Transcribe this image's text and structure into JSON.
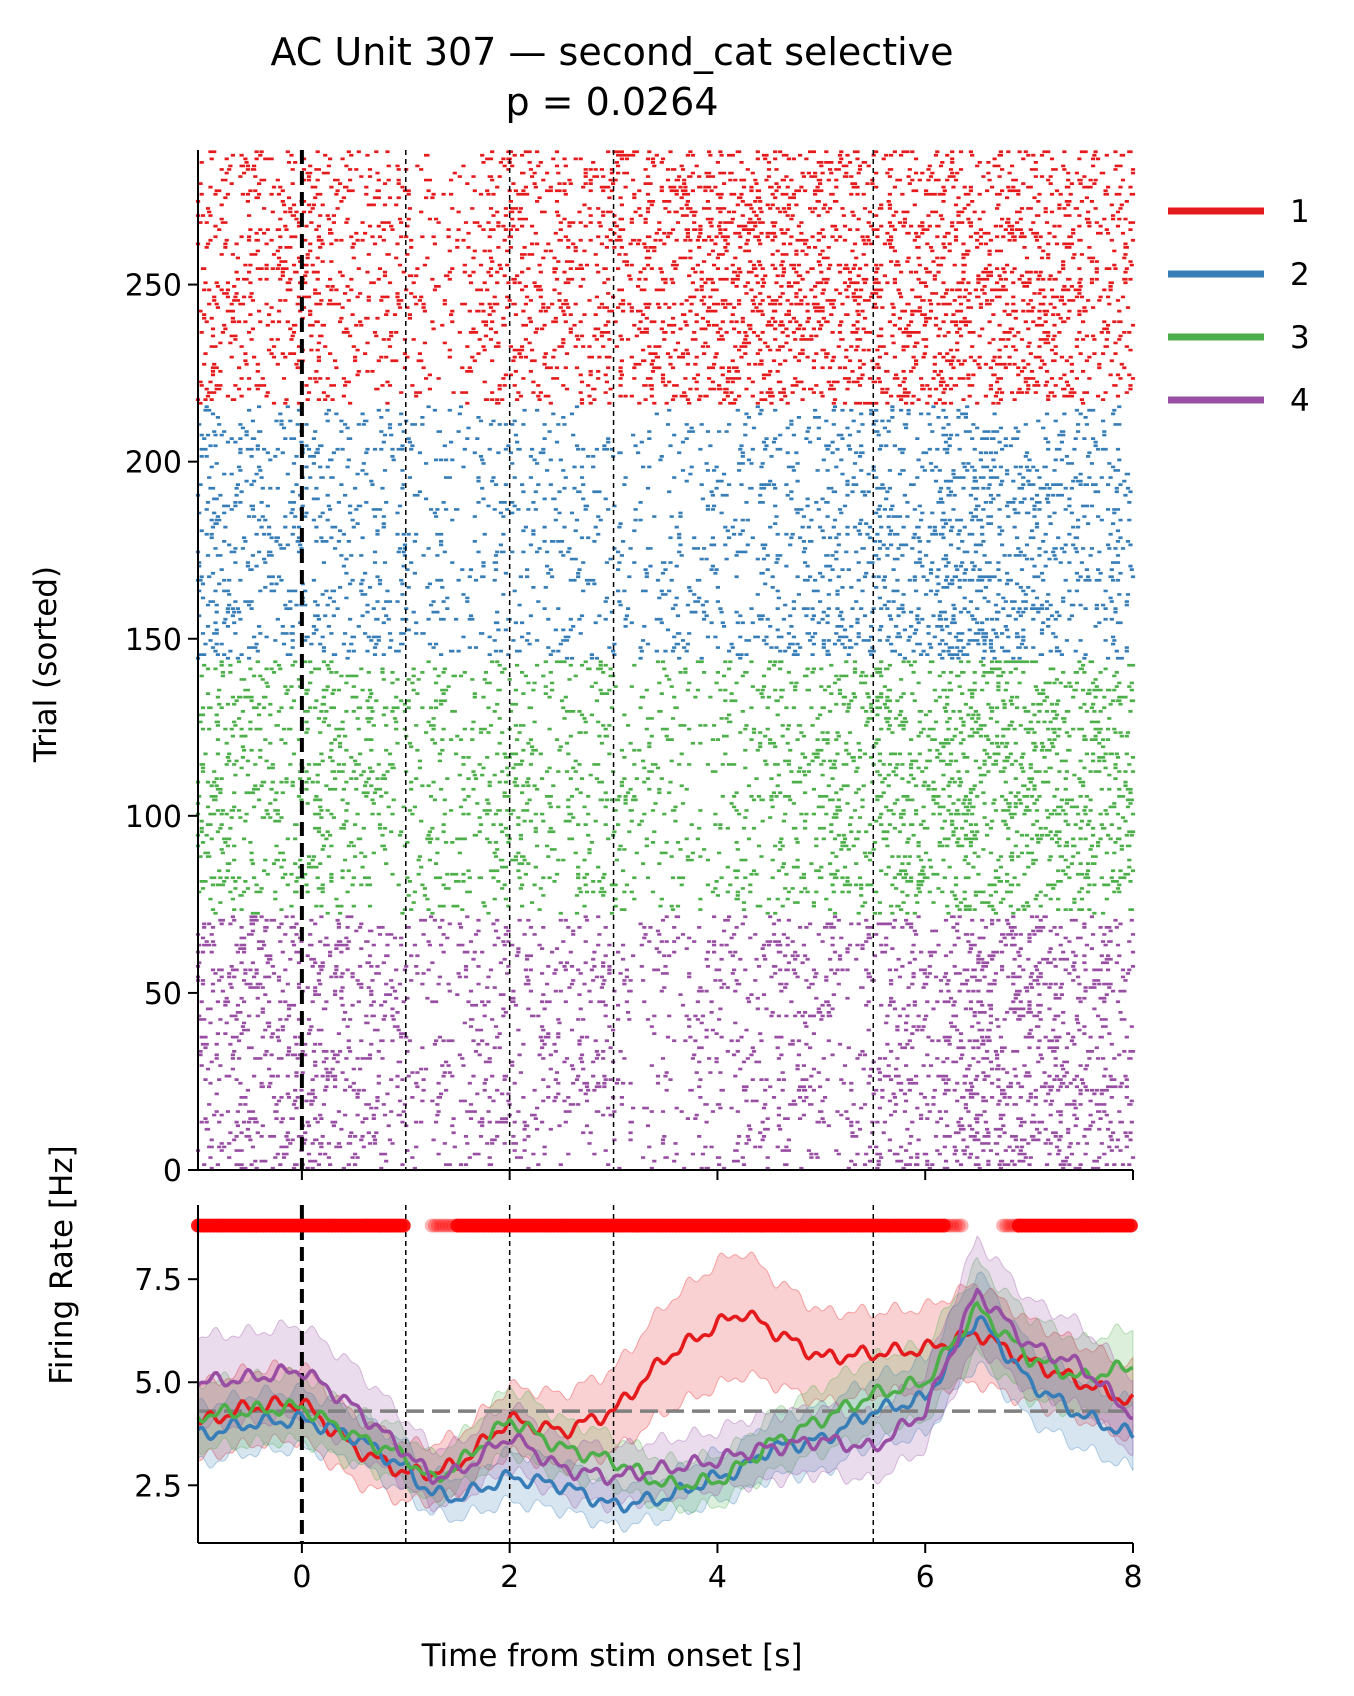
{
  "chart_data": [
    {
      "type": "raster",
      "title": "AC Unit 307 — second_cat selective",
      "subtitle": "p = 0.0264",
      "xlabel": "",
      "ylabel": "Trial (sorted)",
      "xlim": [
        -1,
        8
      ],
      "ylim": [
        0,
        288
      ],
      "yticks": [
        0,
        50,
        100,
        150,
        200,
        250
      ],
      "event_lines": [
        0,
        1,
        2,
        3,
        5.5
      ],
      "stim_onset": 0,
      "groups": [
        {
          "name": "1",
          "color": "#e41a1c",
          "trial_start": 216,
          "trial_end": 288,
          "base_rate_hz": 4.2
        },
        {
          "name": "2",
          "color": "#377eb8",
          "trial_start": 144,
          "trial_end": 216,
          "base_rate_hz": 3.6
        },
        {
          "name": "3",
          "color": "#4daf4a",
          "trial_start": 72,
          "trial_end": 144,
          "base_rate_hz": 3.9
        },
        {
          "name": "4",
          "color": "#984ea3",
          "trial_start": 0,
          "trial_end": 72,
          "base_rate_hz": 3.8
        }
      ]
    },
    {
      "type": "line",
      "xlabel": "Time from stim onset [s]",
      "ylabel": "Firing Rate [Hz]",
      "xlim": [
        -1,
        8
      ],
      "ylim": [
        1.1,
        9.3
      ],
      "xticks": [
        0,
        2,
        4,
        6,
        8
      ],
      "yticks": [
        2.5,
        5.0,
        7.5
      ],
      "baseline": 4.3,
      "significance_level": 8.8,
      "significance_color": "#ff0000",
      "significant_intervals": [
        [
          -1.0,
          1.0
        ],
        [
          1.5,
          6.2
        ],
        [
          6.9,
          8.0
        ]
      ],
      "marginal_intervals": [
        [
          0.6,
          0.95
        ],
        [
          1.25,
          1.5
        ],
        [
          6.2,
          6.35
        ],
        [
          6.75,
          6.95
        ]
      ],
      "x": [
        -1.0,
        -0.5,
        0.0,
        0.5,
        1.0,
        1.25,
        1.5,
        2.0,
        2.5,
        3.0,
        3.5,
        4.0,
        4.25,
        4.5,
        5.0,
        5.5,
        6.0,
        6.5,
        7.0,
        7.5,
        8.0
      ],
      "series": [
        {
          "name": "1",
          "color": "#e41a1c",
          "values": [
            4.0,
            4.4,
            4.5,
            3.4,
            2.8,
            2.8,
            3.0,
            4.1,
            3.8,
            4.3,
            5.6,
            6.4,
            6.7,
            6.3,
            5.6,
            5.7,
            5.8,
            6.2,
            5.5,
            5.0,
            4.5
          ],
          "ci_halfwidth": [
            0.9,
            0.9,
            0.9,
            0.8,
            0.7,
            0.7,
            0.7,
            0.8,
            0.9,
            1.0,
            1.3,
            1.5,
            1.5,
            1.3,
            1.1,
            1.0,
            1.0,
            1.2,
            1.0,
            0.9,
            0.9
          ]
        },
        {
          "name": "2",
          "color": "#377eb8",
          "values": [
            3.7,
            4.0,
            4.1,
            3.7,
            2.9,
            2.3,
            2.2,
            2.7,
            2.5,
            2.0,
            2.2,
            2.7,
            2.9,
            3.4,
            3.6,
            4.3,
            4.6,
            6.6,
            5.0,
            4.2,
            3.7
          ],
          "ci_halfwidth": [
            0.7,
            0.7,
            0.7,
            0.6,
            0.6,
            0.5,
            0.5,
            0.6,
            0.6,
            0.5,
            0.5,
            0.6,
            0.6,
            0.7,
            0.8,
            0.8,
            0.9,
            1.1,
            0.9,
            0.8,
            0.8
          ]
        },
        {
          "name": "3",
          "color": "#4daf4a",
          "values": [
            4.2,
            4.3,
            4.4,
            3.7,
            3.2,
            2.6,
            3.0,
            4.1,
            3.4,
            3.1,
            2.5,
            2.6,
            3.0,
            3.5,
            4.1,
            4.7,
            5.0,
            6.8,
            5.6,
            5.1,
            5.4
          ],
          "ci_halfwidth": [
            0.8,
            0.8,
            0.8,
            0.7,
            0.6,
            0.6,
            0.6,
            0.8,
            0.7,
            0.6,
            0.6,
            0.6,
            0.6,
            0.7,
            0.8,
            0.9,
            0.9,
            1.1,
            1.0,
            0.9,
            0.9
          ]
        },
        {
          "name": "4",
          "color": "#984ea3",
          "values": [
            5.0,
            5.1,
            5.3,
            4.4,
            3.3,
            2.7,
            2.8,
            3.7,
            2.9,
            2.7,
            2.9,
            3.1,
            3.3,
            3.4,
            3.6,
            3.4,
            4.3,
            7.2,
            5.9,
            5.4,
            4.2
          ],
          "ci_halfwidth": [
            1.1,
            1.1,
            1.1,
            1.0,
            0.8,
            0.7,
            0.7,
            0.8,
            0.7,
            0.7,
            0.7,
            0.7,
            0.8,
            0.8,
            0.8,
            0.8,
            0.9,
            1.3,
            1.1,
            1.0,
            0.9
          ]
        }
      ]
    }
  ]
}
